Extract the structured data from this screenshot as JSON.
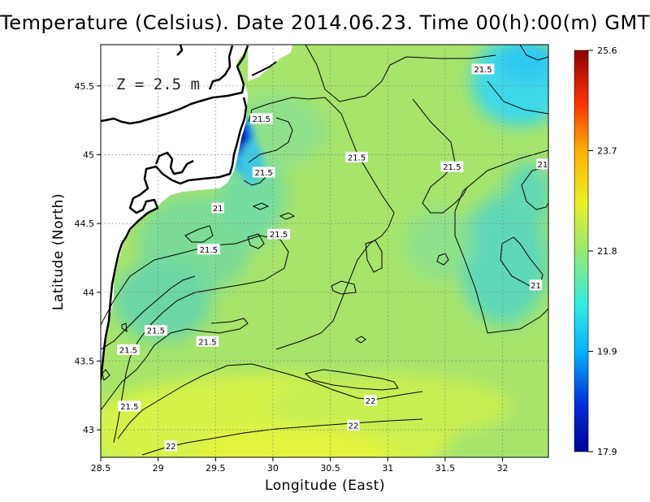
{
  "title": "Temperature (Celsius). Date 2014.06.23. Time 00(h):00(m) GMT",
  "depth_label": "Z = 2.5 m",
  "chart_data": {
    "type": "heatmap",
    "xlabel": "Longitude (East)",
    "ylabel": "Latitude (North)",
    "xlim": [
      28.5,
      32.4
    ],
    "ylim": [
      42.8,
      45.8
    ],
    "x_ticks": [
      "28.5",
      "29",
      "29.5",
      "30",
      "30.5",
      "31",
      "31.5",
      "32"
    ],
    "y_ticks": [
      "43",
      "43.5",
      "44",
      "44.5",
      "45",
      "45.5"
    ],
    "grid": true,
    "colorbar": {
      "range": [
        17.9,
        25.6
      ],
      "tick_labels": [
        "25.6",
        "23.7",
        "21.8",
        "19.9",
        "17.9"
      ]
    },
    "contour_labels": [
      {
        "text": "21.5",
        "lon": 31.83,
        "lat": 45.62
      },
      {
        "text": "21.5",
        "lon": 29.9,
        "lat": 45.26
      },
      {
        "text": "21.5",
        "lon": 30.73,
        "lat": 44.98
      },
      {
        "text": "21.5",
        "lon": 31.56,
        "lat": 44.91
      },
      {
        "text": "21.5",
        "lon": 29.92,
        "lat": 44.87
      },
      {
        "text": "21",
        "lon": 29.52,
        "lat": 44.61
      },
      {
        "text": "21.5",
        "lon": 30.05,
        "lat": 44.42
      },
      {
        "text": "21.5",
        "lon": 29.44,
        "lat": 44.31
      },
      {
        "text": "21",
        "lon": 32.29,
        "lat": 44.05
      },
      {
        "text": "21.5",
        "lon": 28.98,
        "lat": 43.72
      },
      {
        "text": "21.5",
        "lon": 28.74,
        "lat": 43.58
      },
      {
        "text": "21.5",
        "lon": 29.43,
        "lat": 43.64
      },
      {
        "text": "21.5",
        "lon": 28.75,
        "lat": 43.17
      },
      {
        "text": "22",
        "lon": 30.85,
        "lat": 43.21
      },
      {
        "text": "22",
        "lon": 30.7,
        "lat": 43.03
      },
      {
        "text": "22",
        "lon": 29.11,
        "lat": 42.88
      },
      {
        "text": "21",
        "lon": 32.35,
        "lat": 44.93
      }
    ]
  },
  "colors": {
    "background_field": "#9ee26a",
    "cold_core": "#0d16a0",
    "land": "#ffffff",
    "coastline": "#000000"
  }
}
